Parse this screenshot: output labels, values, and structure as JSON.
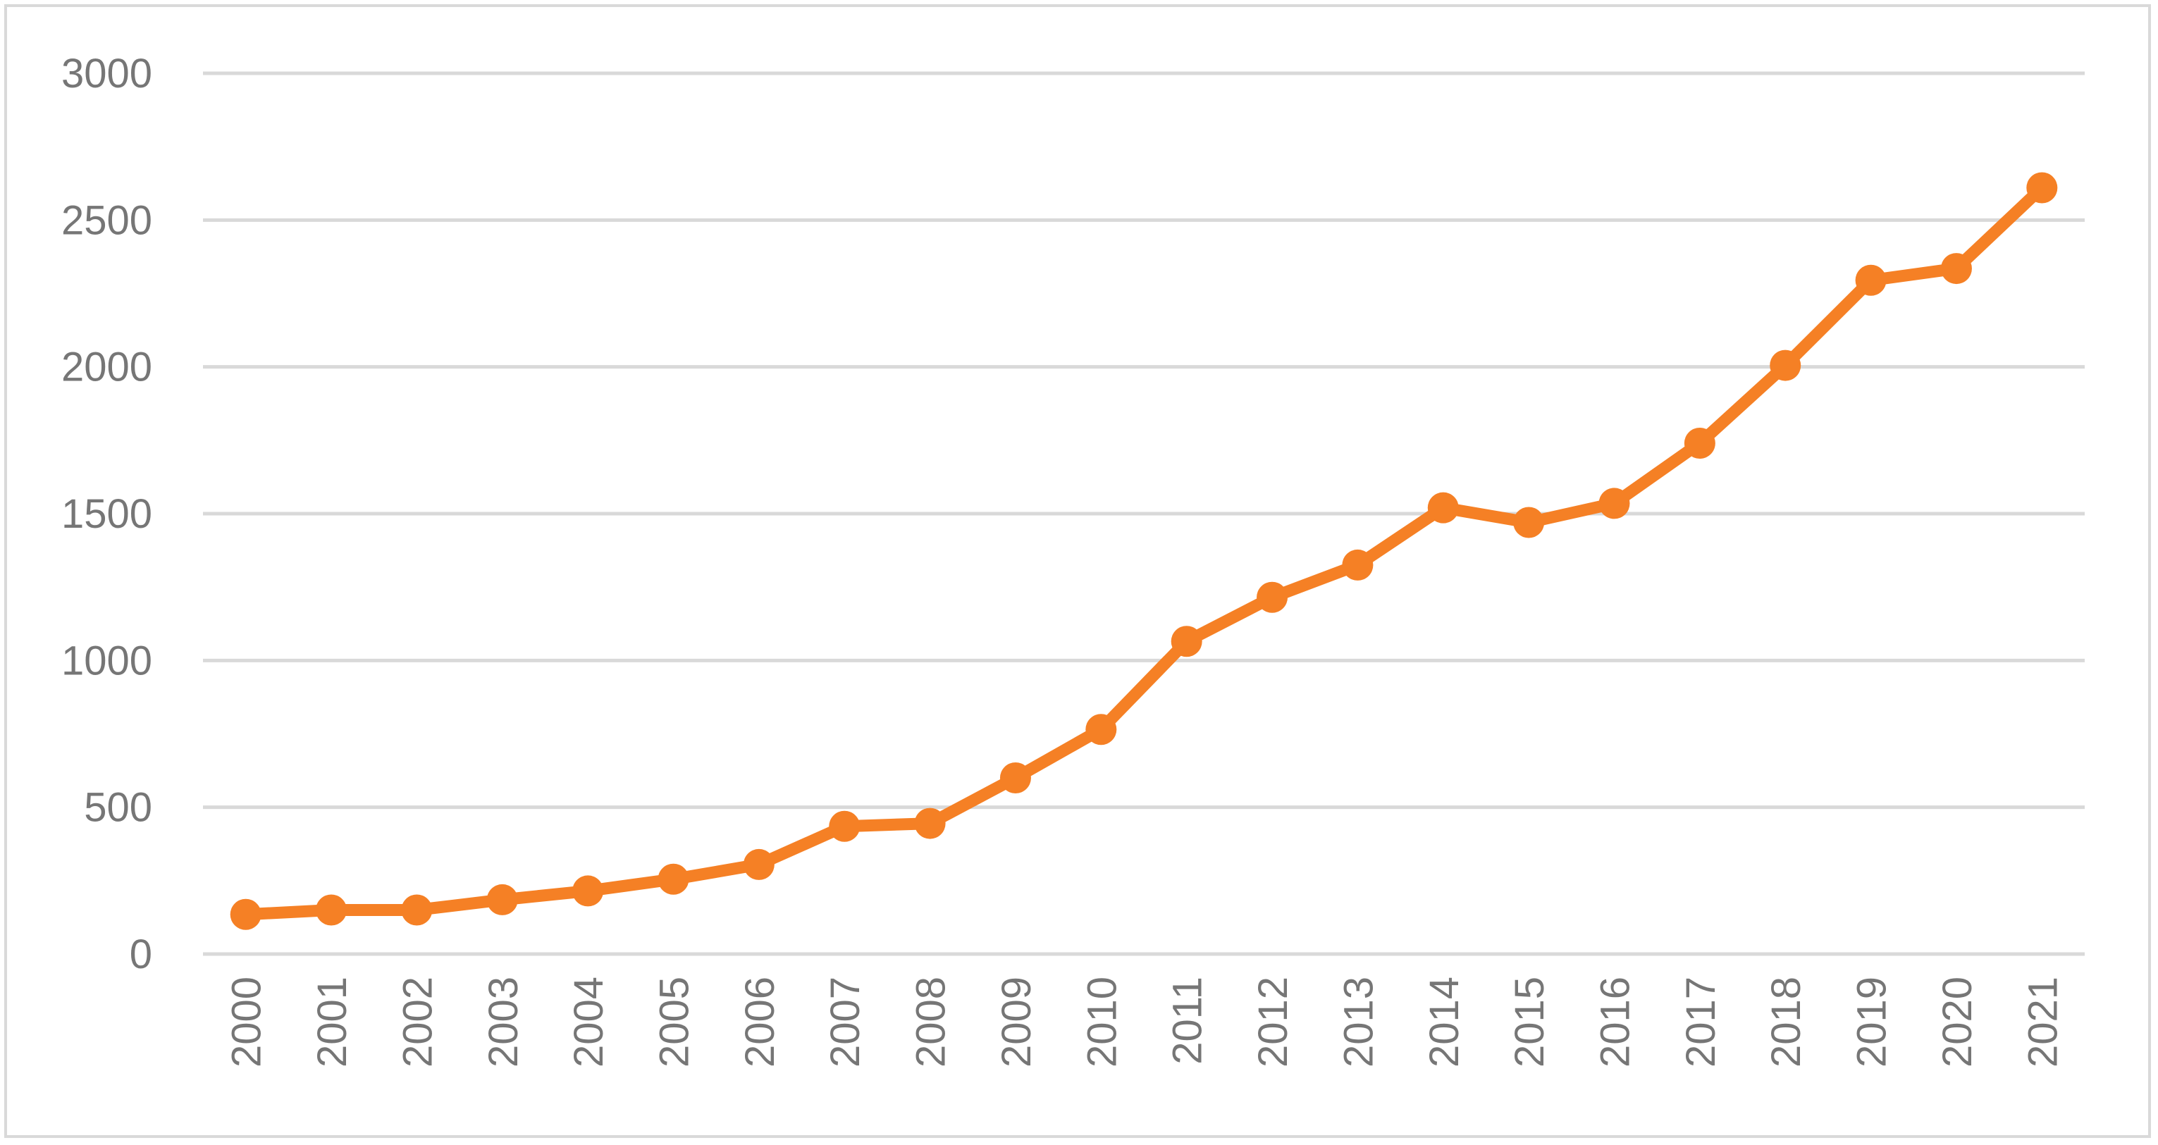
{
  "chart_data": {
    "type": "line",
    "title": "",
    "xlabel": "",
    "ylabel": "",
    "categories": [
      "2000",
      "2001",
      "2002",
      "2003",
      "2004",
      "2005",
      "2006",
      "2007",
      "2008",
      "2009",
      "2010",
      "2011",
      "2012",
      "2013",
      "2014",
      "2015",
      "2016",
      "2017",
      "2018",
      "2019",
      "2020",
      "2021"
    ],
    "series": [
      {
        "values": [
          135,
          150,
          150,
          185,
          215,
          255,
          305,
          435,
          445,
          600,
          765,
          1065,
          1215,
          1325,
          1520,
          1470,
          1535,
          1740,
          2005,
          2295,
          2335,
          2610
        ],
        "color": "#f58025"
      }
    ],
    "ylim": [
      0,
      3000
    ],
    "yticks": [
      0,
      500,
      1000,
      1500,
      2000,
      2500,
      3000
    ],
    "grid": true,
    "legend": "none",
    "marker": "circle"
  }
}
